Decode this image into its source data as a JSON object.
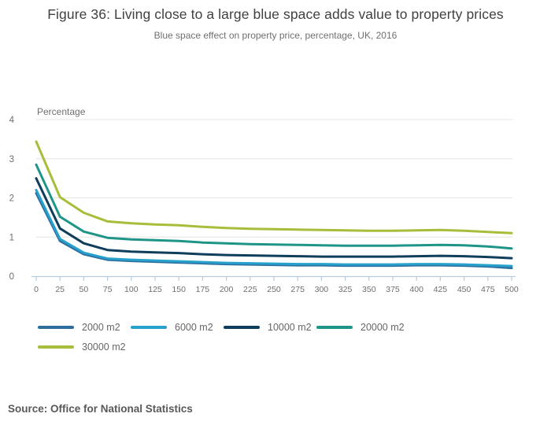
{
  "chart_data": {
    "type": "line",
    "title": "Figure 36: Living close to a large blue space adds value to property prices",
    "subtitle": "Blue space effect on property price, percentage, UK, 2016",
    "ylabel": "Percentage",
    "xlabel": "",
    "ylim": [
      0,
      4
    ],
    "xlim": [
      0,
      500
    ],
    "yticks": [
      0,
      1,
      2,
      3,
      4
    ],
    "xticks": [
      0,
      25,
      50,
      75,
      100,
      125,
      150,
      175,
      200,
      225,
      250,
      275,
      300,
      325,
      350,
      375,
      400,
      425,
      450,
      475,
      500
    ],
    "grid": true,
    "legend_position": "bottom",
    "x": [
      0,
      25,
      50,
      75,
      100,
      125,
      150,
      175,
      200,
      225,
      250,
      275,
      300,
      325,
      350,
      375,
      400,
      425,
      450,
      475,
      500
    ],
    "series": [
      {
        "name": "2000 m2",
        "color": "#2d6e9e",
        "values": [
          2.12,
          0.9,
          0.56,
          0.42,
          0.39,
          0.37,
          0.35,
          0.33,
          0.31,
          0.3,
          0.29,
          0.28,
          0.28,
          0.27,
          0.27,
          0.27,
          0.28,
          0.28,
          0.27,
          0.25,
          0.21
        ]
      },
      {
        "name": "6000 m2",
        "color": "#27a0cc",
        "values": [
          2.2,
          0.95,
          0.6,
          0.45,
          0.42,
          0.4,
          0.38,
          0.36,
          0.34,
          0.33,
          0.32,
          0.31,
          0.31,
          0.3,
          0.3,
          0.3,
          0.31,
          0.31,
          0.3,
          0.28,
          0.26
        ]
      },
      {
        "name": "10000 m2",
        "color": "#0f3d5c",
        "values": [
          2.5,
          1.22,
          0.84,
          0.67,
          0.63,
          0.61,
          0.59,
          0.56,
          0.54,
          0.53,
          0.52,
          0.51,
          0.5,
          0.5,
          0.5,
          0.5,
          0.51,
          0.52,
          0.51,
          0.49,
          0.46
        ]
      },
      {
        "name": "20000 m2",
        "color": "#1f9588",
        "values": [
          2.85,
          1.52,
          1.14,
          0.98,
          0.94,
          0.92,
          0.9,
          0.86,
          0.84,
          0.82,
          0.81,
          0.8,
          0.79,
          0.78,
          0.78,
          0.78,
          0.79,
          0.8,
          0.79,
          0.76,
          0.71
        ]
      },
      {
        "name": "30000 m2",
        "color": "#a8bd3a",
        "values": [
          3.44,
          2.02,
          1.62,
          1.4,
          1.35,
          1.32,
          1.3,
          1.26,
          1.23,
          1.21,
          1.2,
          1.19,
          1.18,
          1.17,
          1.16,
          1.16,
          1.17,
          1.18,
          1.16,
          1.13,
          1.1
        ]
      }
    ]
  },
  "styles": {
    "grid_color": "#e4e4e4",
    "axis_color": "#b9cbdc",
    "tick_label_color": "#6e6e6e",
    "title_color": "#414042",
    "subtitle_color": "#707070",
    "source_color": "#58595b"
  },
  "source_note": "Source: Office for National Statistics"
}
